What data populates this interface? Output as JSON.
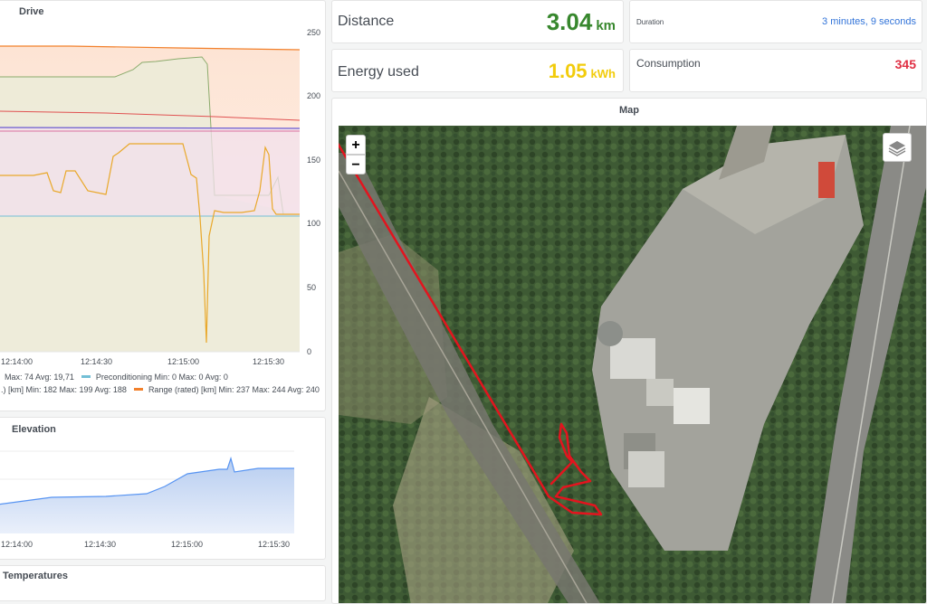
{
  "drive": {
    "title": "Drive",
    "y_ticks": [
      "250",
      "200",
      "150",
      "100",
      "50",
      "0"
    ],
    "x_ticks": [
      "12:14:00",
      "12:14:30",
      "12:15:00",
      "12:15:30"
    ],
    "legend_line1": [
      {
        "text": "Max: 74  Avg: 19,71"
      },
      {
        "text": "Preconditioning  Min: 0  Max: 0  Avg: 0",
        "color": "#73bfd6"
      }
    ],
    "legend_line2": [
      {
        "text": ".) [km]  Min: 182  Max: 199  Avg: 188"
      },
      {
        "text": "Range (rated) [km]  Min: 237  Max: 244  Avg: 240",
        "color": "#f2802b"
      }
    ]
  },
  "elevation": {
    "title": "Elevation",
    "x_ticks": [
      "12:14:00",
      "12:14:30",
      "12:15:00",
      "12:15:30"
    ]
  },
  "temperatures": {
    "title": "Temperatures"
  },
  "distance": {
    "label": "Distance",
    "value": "3.04",
    "unit": "km",
    "color": "#37872d"
  },
  "energy": {
    "label": "Energy used",
    "value": "1.05",
    "unit": "kWh",
    "color": "#f2cc0c"
  },
  "duration": {
    "label": "Duration",
    "value": "3 minutes, 9 seconds",
    "color": "#3274d9"
  },
  "consumption": {
    "label": "Consumption",
    "value": "345",
    "color": "#e02f44"
  },
  "map": {
    "title": "Map",
    "zoom_in": "+",
    "zoom_out": "−"
  }
}
